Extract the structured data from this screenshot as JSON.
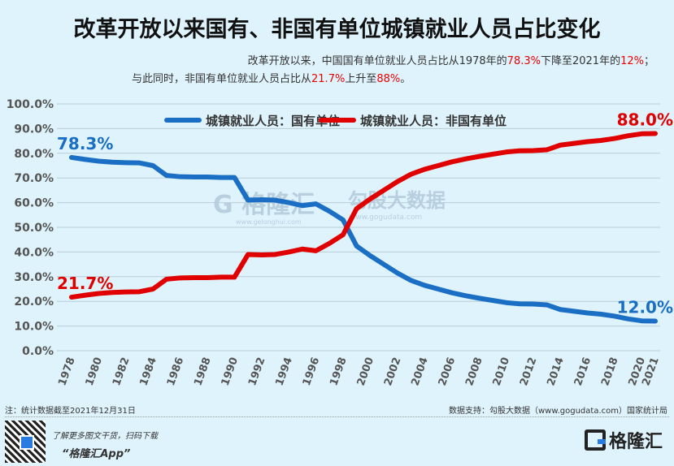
{
  "title": "改革开放以来国有、非国有单位城镇就业人员占比变化",
  "subtitle": {
    "line1_a": "改革开放以来，中国国有单位就业人员占比从1978年的",
    "line1_b": "78.3%",
    "line1_c": "下降至2021年的",
    "line1_d": "12%",
    "line1_e": "；",
    "line2_a": "与此同时，非国有单位就业人员占比从",
    "line2_b": "21.7%",
    "line2_c": "上升至",
    "line2_d": "88%",
    "line2_e": "。"
  },
  "watermark": {
    "text": "格隆汇",
    "url": "www.gelonghui.com",
    "text2": "勾股大数据",
    "url2": "www.gogudata.com"
  },
  "footer": {
    "note": "注：统计数据截至2021年12月31日",
    "source": "数据支持：勾股大数据（www.gogudata.com）国家统计局",
    "promo": "了解更多图文干货，扫码下载",
    "app": "“格隆汇App”",
    "logo": "格隆汇"
  },
  "chart_data": {
    "type": "line",
    "x": [
      1978,
      1979,
      1980,
      1981,
      1982,
      1983,
      1984,
      1985,
      1986,
      1987,
      1988,
      1989,
      1990,
      1991,
      1992,
      1993,
      1994,
      1995,
      1996,
      1997,
      1998,
      1999,
      2000,
      2001,
      2002,
      2003,
      2004,
      2005,
      2006,
      2007,
      2008,
      2009,
      2010,
      2011,
      2012,
      2013,
      2014,
      2015,
      2016,
      2017,
      2018,
      2019,
      2020,
      2021
    ],
    "xticks": [
      "1978",
      "1980",
      "1982",
      "1984",
      "1986",
      "1988",
      "1990",
      "1992",
      "1994",
      "1996",
      "1998",
      "2000",
      "2002",
      "2004",
      "2006",
      "2008",
      "2010",
      "2012",
      "2014",
      "2016",
      "2018",
      "2020",
      "2021"
    ],
    "yticks": [
      "0.0%",
      "10.0%",
      "20.0%",
      "30.0%",
      "40.0%",
      "50.0%",
      "60.0%",
      "70.0%",
      "80.0%",
      "90.0%",
      "100.0%"
    ],
    "ylim": [
      0,
      100
    ],
    "grid": true,
    "legend": "top-center",
    "series": [
      {
        "name": "城镇就业人员：国有单位",
        "color": "#1a6fc4",
        "values": [
          78.3,
          77.5,
          76.8,
          76.4,
          76.2,
          76.1,
          75.0,
          71.0,
          70.5,
          70.4,
          70.4,
          70.2,
          70.2,
          61.0,
          61.2,
          61.0,
          60.0,
          58.8,
          59.5,
          56.5,
          53.0,
          42.4,
          38.5,
          35.0,
          31.5,
          28.5,
          26.5,
          25.0,
          23.5,
          22.3,
          21.3,
          20.4,
          19.5,
          19.0,
          18.9,
          18.6,
          16.7,
          16.0,
          15.3,
          14.8,
          14.0,
          12.9,
          12.1,
          12.0
        ],
        "labels": {
          "first": "78.3%",
          "last": "12.0%"
        }
      },
      {
        "name": "城镇就业人员：非国有单位",
        "color": "#e00000",
        "values": [
          21.7,
          22.5,
          23.2,
          23.6,
          23.8,
          23.9,
          25.0,
          29.0,
          29.5,
          29.6,
          29.6,
          29.8,
          29.8,
          39.0,
          38.8,
          39.0,
          40.0,
          41.2,
          40.5,
          43.5,
          47.0,
          57.6,
          61.5,
          65.0,
          68.5,
          71.5,
          73.5,
          75.0,
          76.5,
          77.7,
          78.7,
          79.6,
          80.5,
          81.0,
          81.1,
          81.4,
          83.3,
          84.0,
          84.7,
          85.2,
          86.0,
          87.1,
          87.9,
          88.0
        ],
        "labels": {
          "first": "21.7%",
          "last": "88.0%"
        }
      }
    ]
  }
}
